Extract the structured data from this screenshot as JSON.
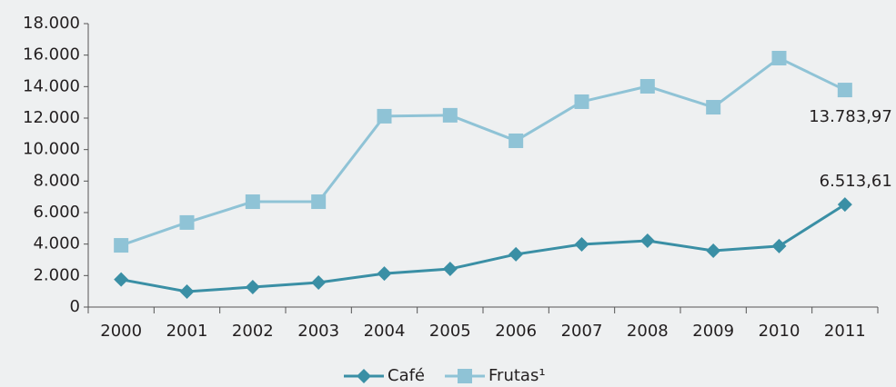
{
  "chart_data": {
    "type": "line",
    "categories": [
      "2000",
      "2001",
      "2002",
      "2003",
      "2004",
      "2005",
      "2006",
      "2007",
      "2008",
      "2009",
      "2010",
      "2011"
    ],
    "series": [
      {
        "name": "Café",
        "color": "#3a8fa5",
        "marker": "diamond",
        "values": [
          1750,
          980,
          1270,
          1560,
          2130,
          2420,
          3350,
          3980,
          4210,
          3580,
          3870,
          6513.61
        ],
        "value_labels": [
          null,
          null,
          null,
          null,
          null,
          null,
          null,
          null,
          null,
          null,
          null,
          "6.513,61"
        ]
      },
      {
        "name": "Frutas¹",
        "color": "#8fc3d6",
        "marker": "square",
        "values": [
          3920,
          5370,
          6690,
          6690,
          12120,
          12180,
          10560,
          13040,
          14020,
          12690,
          15810,
          13783.97
        ],
        "value_labels": [
          null,
          null,
          null,
          null,
          null,
          null,
          null,
          null,
          null,
          null,
          null,
          "13.783,97"
        ]
      }
    ],
    "ylim": [
      0,
      18000
    ],
    "yticks": [
      0,
      {
        "value": 2000,
        "label": "2.000"
      },
      {
        "value": 4000,
        "label": "4.000"
      },
      {
        "value": 6000,
        "label": "6.000"
      },
      {
        "value": 8000,
        "label": "8.000"
      },
      {
        "value": 10000,
        "label": "10.000"
      },
      {
        "value": 12000,
        "label": "12.000"
      },
      {
        "value": 14000,
        "label": "14.000"
      },
      {
        "value": 16000,
        "label": "16.000"
      },
      {
        "value": 18000,
        "label": "18.000"
      }
    ],
    "grid": false,
    "legend": "bottom"
  }
}
